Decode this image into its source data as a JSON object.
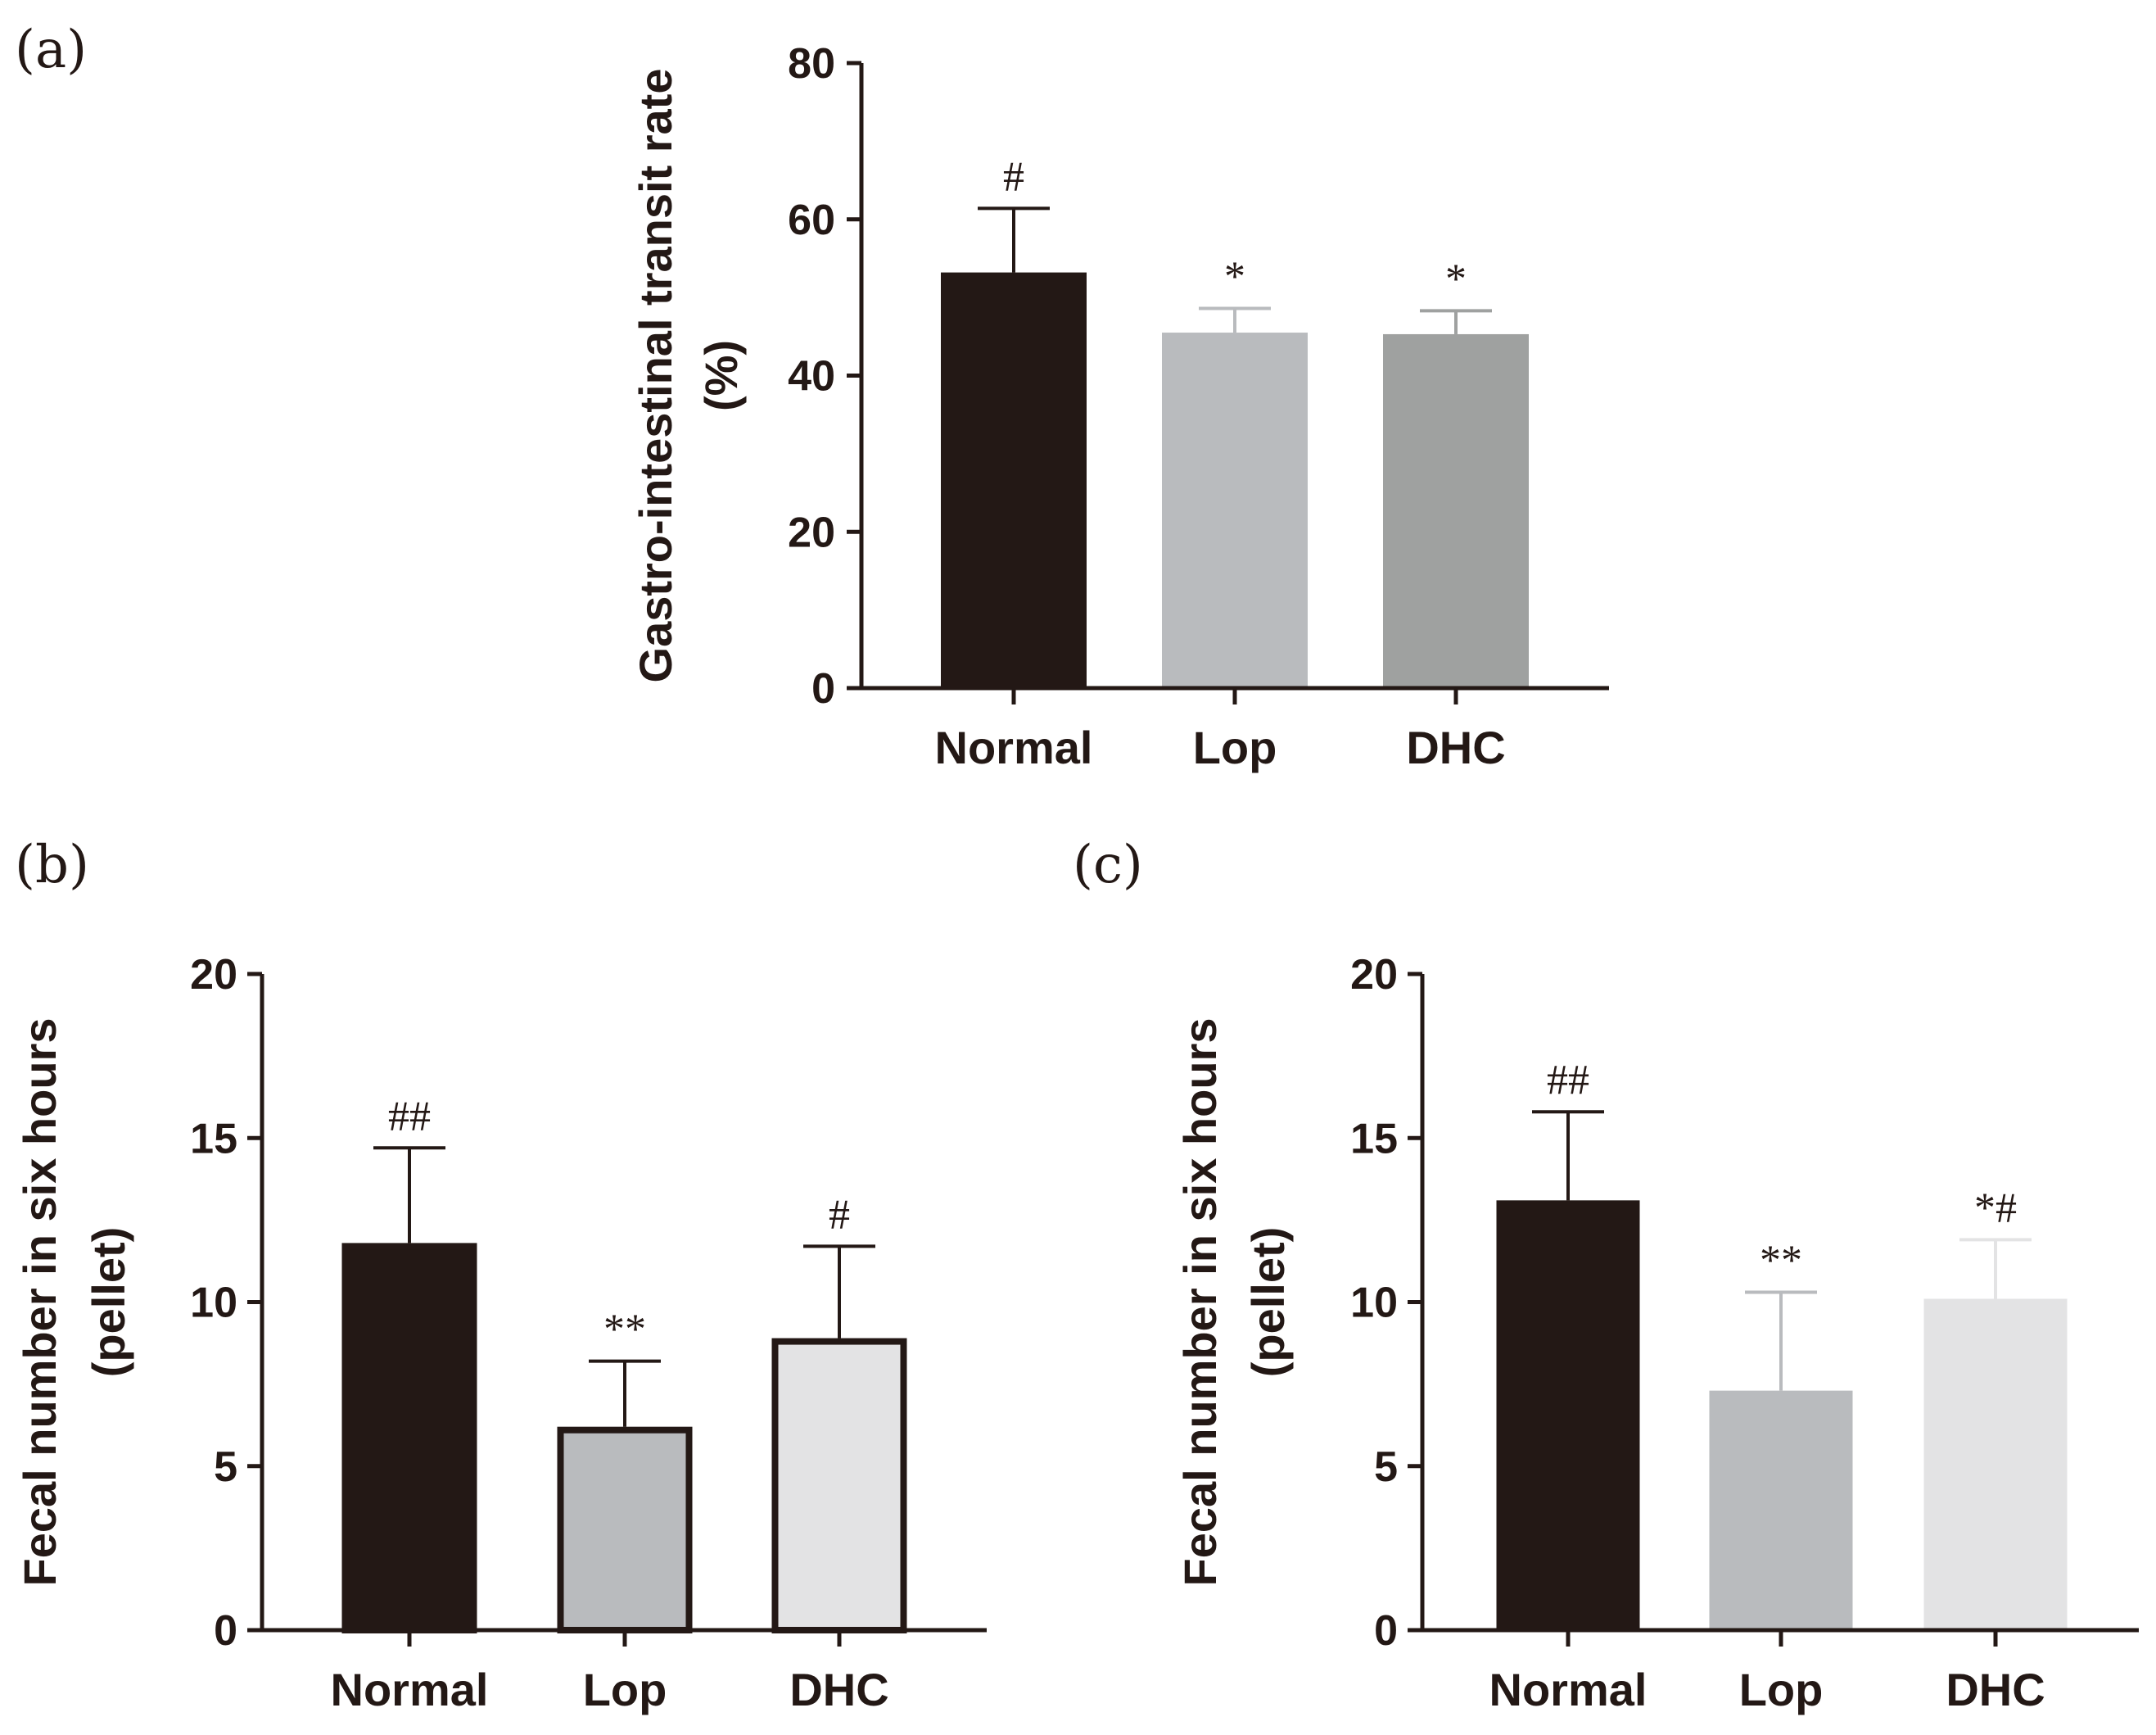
{
  "chart_data": [
    {
      "panel_label": "(a)",
      "type": "bar",
      "categories": [
        "Normal",
        "Lop",
        "DHC"
      ],
      "values": [
        53.2,
        45.5,
        45.3
      ],
      "errors": [
        8.2,
        3.1,
        3.0
      ],
      "annotations": [
        "#",
        "*",
        "*"
      ],
      "colors": [
        "#231815",
        "#b9bbbe",
        "#9fa1a0"
      ],
      "outlined": false,
      "ylabel_line1": "Gastro-intestinal transit rate",
      "ylabel_line2": "(%)",
      "ylim": [
        0,
        80
      ],
      "yticks": [
        0,
        20,
        40,
        60,
        80
      ],
      "grid": false
    },
    {
      "panel_label": "(b)",
      "type": "bar",
      "categories": [
        "Normal",
        "Lop",
        "DHC"
      ],
      "values": [
        11.8,
        6.2,
        8.9
      ],
      "errors": [
        2.9,
        2.0,
        2.8
      ],
      "annotations": [
        "##",
        "**",
        "#"
      ],
      "colors": [
        "#231815",
        "#b9bbbe",
        "#e3e3e4"
      ],
      "outlined": true,
      "ylabel_line1": "Fecal number in six hours",
      "ylabel_line2": "(pellet)",
      "ylim": [
        0,
        20
      ],
      "yticks": [
        0,
        5,
        10,
        15,
        20
      ],
      "grid": false
    },
    {
      "panel_label": "(c)",
      "type": "bar",
      "categories": [
        "Normal",
        "Lop",
        "DHC"
      ],
      "values": [
        13.1,
        7.3,
        10.1
      ],
      "errors": [
        2.7,
        3.0,
        1.8
      ],
      "annotations": [
        "##",
        "**",
        "*#"
      ],
      "colors": [
        "#231815",
        "#b9bbbe",
        "#e3e3e4"
      ],
      "outlined": false,
      "ylabel_line1": "Fecal number in six hours",
      "ylabel_line2": "(pellet)",
      "ylim": [
        0,
        20
      ],
      "yticks": [
        0,
        5,
        10,
        15,
        20
      ],
      "grid": false
    }
  ]
}
